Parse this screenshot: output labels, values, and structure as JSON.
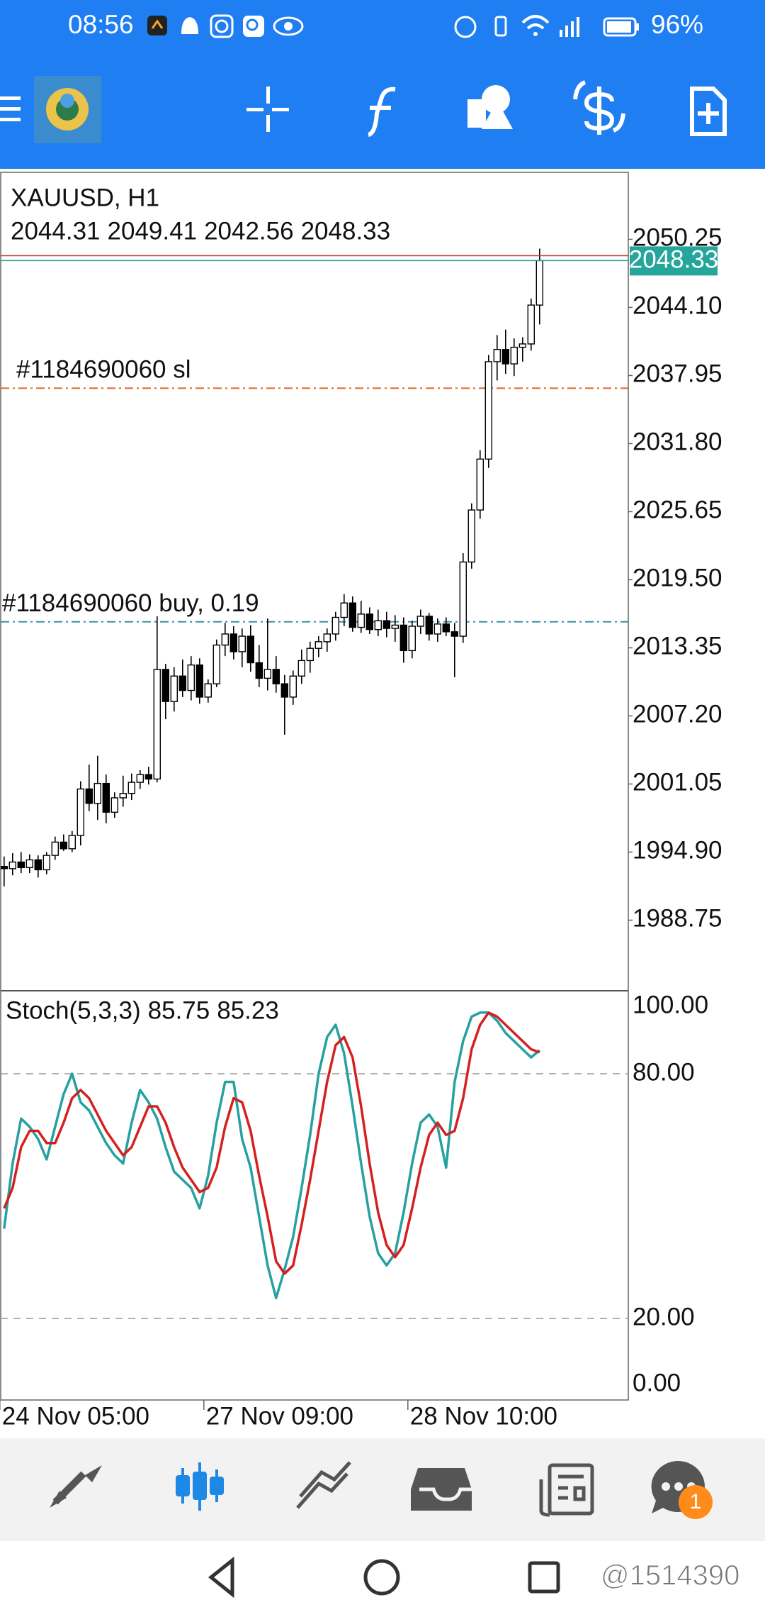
{
  "status_bar": {
    "time": "08:56",
    "battery": "96%"
  },
  "chart_data": {
    "type": "candlestick",
    "title": "XAUUSD, H1",
    "categories": [
      "24 Nov 05:00",
      null,
      null,
      null,
      null,
      null,
      null,
      null,
      null,
      null,
      null,
      null,
      null,
      null,
      null,
      null,
      null,
      null,
      null,
      null,
      null,
      null,
      null,
      null,
      "27 Nov 09:00",
      null,
      null,
      null,
      null,
      null,
      null,
      null,
      null,
      null,
      null,
      null,
      null,
      null,
      null,
      null,
      null,
      null,
      null,
      null,
      null,
      null,
      null,
      null,
      "28 Nov 10:00",
      null,
      null,
      null,
      null,
      null,
      null,
      null,
      null,
      null,
      null,
      null,
      null,
      null,
      null,
      null
    ],
    "open": [
      1993.6,
      1993.4,
      1994.0,
      1993.5,
      1994.2,
      1993.3,
      1994.6,
      1995.8,
      1995.2,
      1996.4,
      2000.6,
      1999.3,
      2001.1,
      1998.5,
      1999.8,
      2000.2,
      2001.2,
      2001.9,
      2001.5,
      2011.4,
      2008.5,
      2010.8,
      2009.5,
      2011.8,
      2008.9,
      2010.1,
      2013.6,
      2014.6,
      2013.0,
      2014.4,
      2012.0,
      2010.6,
      2011.4,
      2010.1,
      2008.9,
      2010.8,
      2012.2,
      2013.3,
      2013.9,
      2014.6,
      2016.1,
      2017.4,
      2015.2,
      2016.4,
      2015.0,
      2015.8,
      2015.1,
      2015.4,
      2013.1,
      2015.3,
      2016.2,
      2014.6,
      2015.5,
      2014.8,
      2014.4,
      2021.1,
      2025.8,
      2030.4,
      2039.2,
      2040.3,
      2039.0,
      2040.5,
      2040.8,
      2044.31
    ],
    "high": [
      1994.5,
      1994.8,
      1994.9,
      1994.7,
      1994.6,
      1994.9,
      1996.3,
      1996.5,
      1996.8,
      2001.3,
      2002.8,
      2003.6,
      2001.9,
      2000.3,
      2001.8,
      2002.0,
      2002.3,
      2002.6,
      2016.2,
      2011.9,
      2011.6,
      2012.3,
      2012.6,
      2012.4,
      2010.5,
      2014.1,
      2015.6,
      2015.3,
      2015.1,
      2015.4,
      2013.6,
      2016.0,
      2012.6,
      2010.9,
      2011.3,
      2013.2,
      2013.9,
      2014.4,
      2015.1,
      2016.6,
      2018.2,
      2018.0,
      2017.6,
      2017.0,
      2016.8,
      2016.6,
      2016.3,
      2016.1,
      2015.8,
      2016.8,
      2016.5,
      2016.0,
      2016.1,
      2015.6,
      2021.9,
      2026.4,
      2031.2,
      2039.8,
      2041.6,
      2042.1,
      2041.3,
      2041.4,
      2044.9,
      2049.41
    ],
    "low": [
      1991.8,
      1992.8,
      1993.0,
      1993.0,
      1992.6,
      1992.9,
      1994.2,
      1995.0,
      1994.9,
      1995.5,
      1998.6,
      1997.8,
      1997.5,
      1998.0,
      1999.0,
      1999.6,
      2000.6,
      2001.0,
      2001.2,
      2006.9,
      2007.6,
      2008.9,
      2008.6,
      2008.3,
      2008.4,
      2009.8,
      2012.6,
      2012.3,
      2011.6,
      2011.2,
      2009.8,
      2009.5,
      2009.3,
      2005.5,
      2008.2,
      2010.1,
      2011.1,
      2012.5,
      2013.0,
      2014.0,
      2015.3,
      2014.8,
      2014.7,
      2014.6,
      2014.4,
      2014.3,
      2013.9,
      2012.0,
      2012.4,
      2014.6,
      2014.0,
      2013.9,
      2014.4,
      2010.7,
      2013.8,
      2020.5,
      2025.0,
      2029.6,
      2037.5,
      2038.1,
      2037.9,
      2039.2,
      2040.2,
      2042.56
    ],
    "close": [
      1993.4,
      1994.0,
      1993.5,
      1994.2,
      1993.3,
      1994.6,
      1995.8,
      1995.2,
      1996.4,
      2000.6,
      1999.3,
      2001.1,
      1998.5,
      1999.8,
      2000.2,
      2001.2,
      2001.9,
      2001.5,
      2011.4,
      2008.5,
      2010.8,
      2009.5,
      2011.8,
      2008.9,
      2010.1,
      2013.6,
      2014.6,
      2013.0,
      2014.4,
      2012.0,
      2010.6,
      2011.4,
      2010.1,
      2008.9,
      2010.8,
      2012.2,
      2013.3,
      2013.9,
      2014.6,
      2016.1,
      2017.4,
      2015.2,
      2016.4,
      2015.0,
      2015.8,
      2015.1,
      2015.4,
      2013.1,
      2015.3,
      2016.2,
      2014.6,
      2015.5,
      2014.8,
      2014.4,
      2021.1,
      2025.8,
      2030.4,
      2039.2,
      2040.3,
      2039.0,
      2040.5,
      2040.8,
      2044.31,
      2048.33
    ],
    "up_color": "#ffffff",
    "down_color": "#000000",
    "ylim": [
      1982.5,
      2056.3
    ],
    "yticks": [
      2050.25,
      {
        "value": 2044.1,
        "label": "2044.10"
      },
      2037.95,
      {
        "value": 2031.8,
        "label": "2031.80"
      },
      2025.65,
      {
        "value": 2019.5,
        "label": "2019.50"
      },
      2013.35,
      {
        "value": 2007.2,
        "label": "2007.20"
      },
      2001.05,
      {
        "value": 1994.9,
        "label": "1994.90"
      },
      1988.75
    ],
    "ask": 2048.77,
    "ask_color": "#b5463a",
    "bid_color": "#26a69a",
    "levels": [
      {
        "label": "#1184690060 sl",
        "value": 2036.8,
        "color": "#e0642a"
      },
      {
        "label": "#1184690060 buy, 0.19",
        "value": 2015.7,
        "color": "#3f8fa8"
      }
    ],
    "indicator": {
      "label": "Stoch(5,3,3)",
      "ylim": [
        0,
        100
      ],
      "yticks": [
        {
          "value": 100,
          "label": "100.00"
        },
        {
          "value": 80,
          "label": "80.00"
        },
        {
          "value": 20,
          "label": "20.00"
        },
        {
          "value": 0,
          "label": "0.00"
        }
      ],
      "series": [
        {
          "color": "#26a0a0",
          "values": [
            42,
            58,
            69,
            67,
            64,
            59,
            67,
            75,
            80,
            73,
            71,
            67,
            63,
            60,
            58,
            68,
            76,
            73,
            69,
            62,
            56,
            54,
            52,
            47,
            55,
            68,
            78,
            78,
            64,
            57,
            45,
            33,
            25,
            32,
            40,
            52,
            65,
            80,
            89,
            92,
            85,
            72,
            58,
            45,
            36,
            33,
            36,
            46,
            58,
            68,
            70,
            67,
            57,
            78,
            88,
            94,
            95,
            95,
            93,
            90,
            88,
            86,
            84,
            85.75
          ]
        },
        {
          "color": "#d42020",
          "values": [
            47,
            52,
            62,
            66,
            66,
            63,
            63,
            68,
            74,
            76,
            74,
            70,
            66,
            63,
            60,
            62,
            67,
            72,
            72,
            68,
            62,
            57,
            54,
            51,
            52,
            57,
            67,
            74,
            73,
            66,
            55,
            45,
            34,
            31,
            33,
            43,
            54,
            66,
            78,
            87,
            89,
            84,
            72,
            58,
            46,
            38,
            35,
            38,
            47,
            57,
            65,
            68,
            65,
            66,
            74,
            86,
            92,
            95,
            94,
            92,
            90,
            88,
            86,
            85.23
          ]
        }
      ]
    }
  },
  "bottom_nav": {
    "badge": "1"
  },
  "watermark": "@1514390"
}
